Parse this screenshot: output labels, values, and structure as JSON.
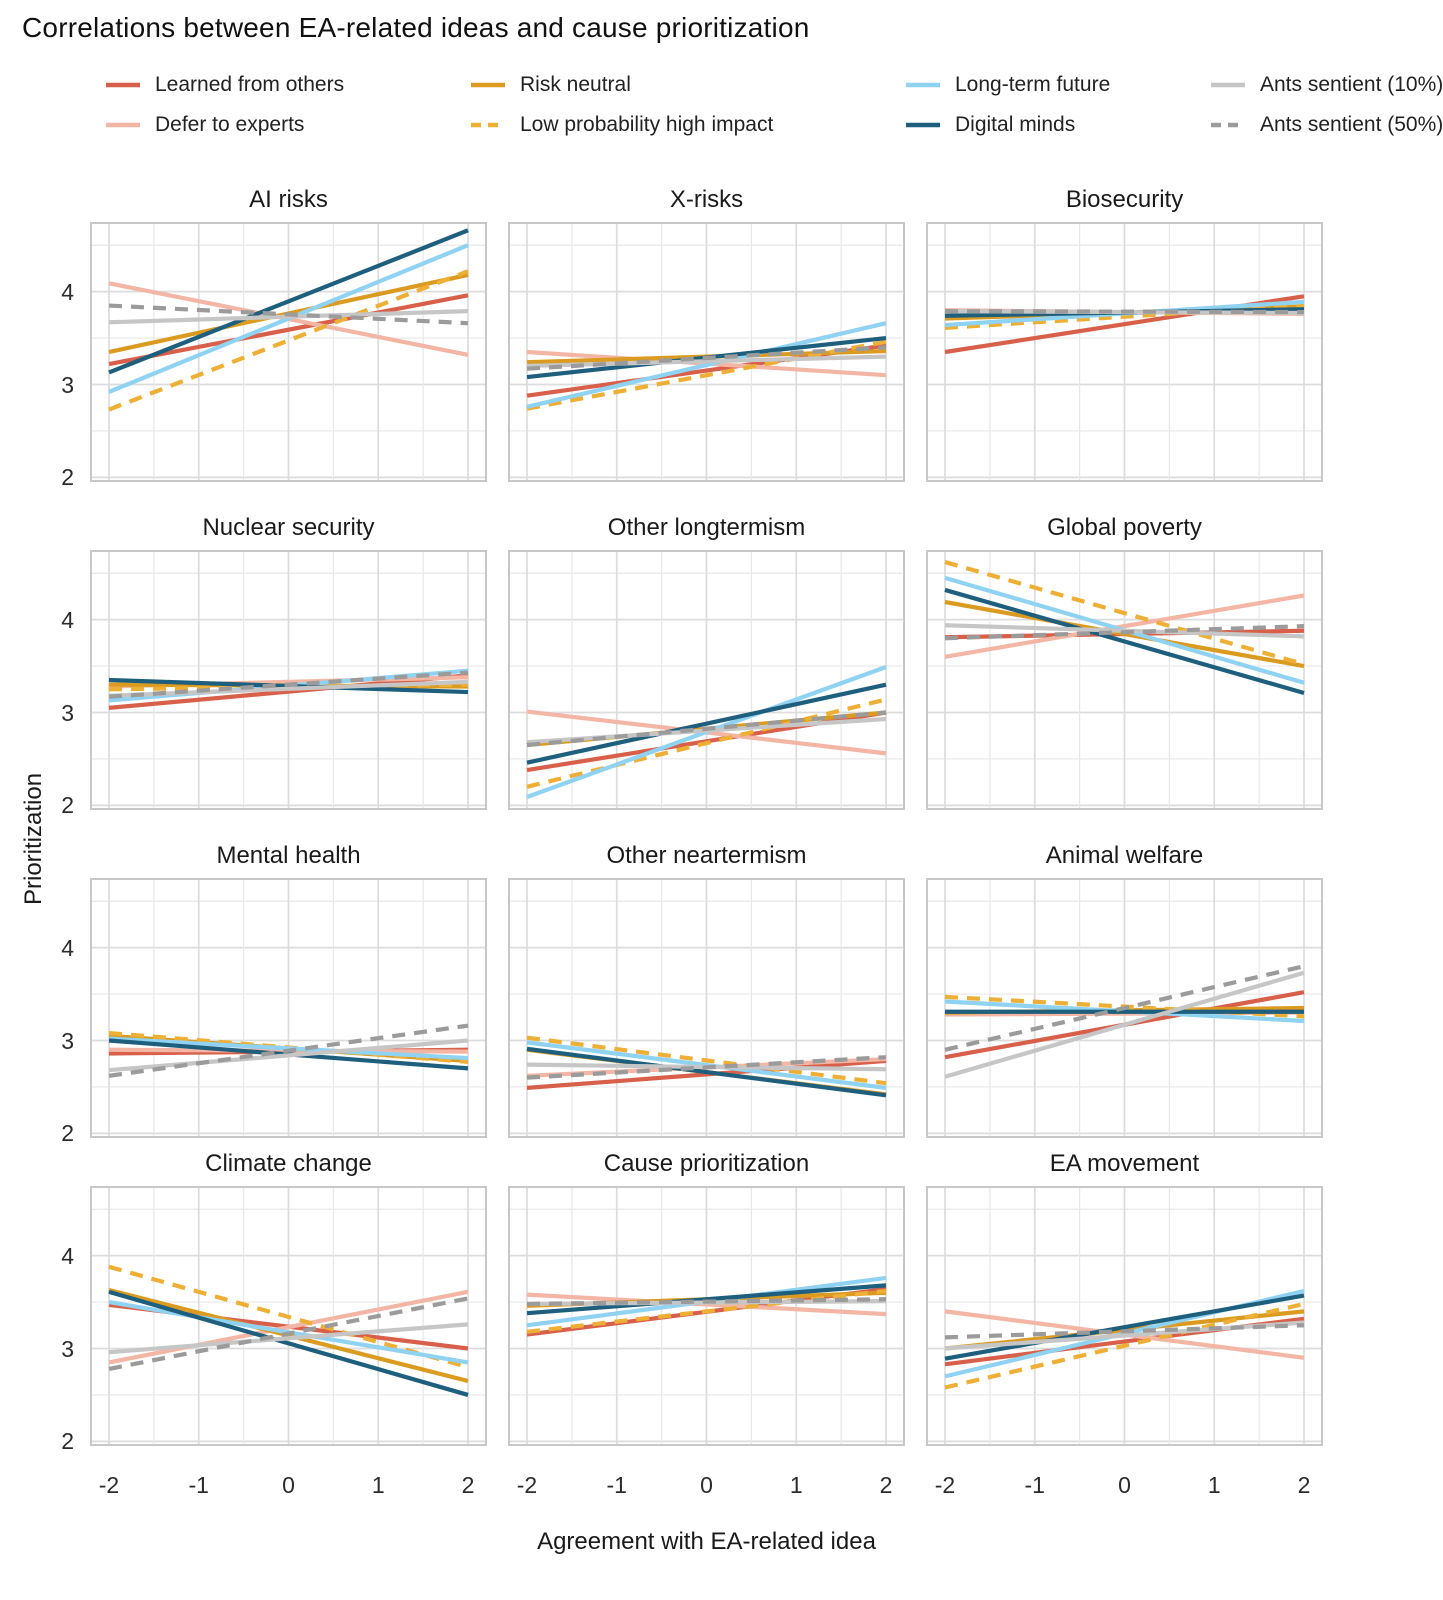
{
  "page": {
    "title": "Correlations between EA-related ideas and cause prioritization"
  },
  "chart_data": {
    "type": "line",
    "title": "Correlations between EA-related ideas and cause prioritization",
    "xlabel": "Agreement with EA-related idea",
    "ylabel": "Prioritization",
    "x_domain": [
      -2,
      2
    ],
    "x_ticks": [
      "-2",
      "-1",
      "0",
      "1",
      "2"
    ],
    "y_ticks": [
      {
        "label": "4",
        "value": 4
      },
      {
        "label": "3",
        "value": 3
      },
      {
        "label": "2",
        "value": 2
      }
    ],
    "ylim": [
      1.95,
      4.75
    ],
    "grid_step": 0.5,
    "legend_position": "top",
    "grid": true,
    "series": [
      {
        "key": "learned",
        "label": "Learned from others",
        "color": "#D8604B",
        "dashed": false
      },
      {
        "key": "defer",
        "label": "Defer to experts",
        "color": "#F3B6A5",
        "dashed": false
      },
      {
        "key": "risk",
        "label": "Risk neutral",
        "color": "#DB9B20",
        "dashed": false
      },
      {
        "key": "lowprob",
        "label": "Low probability high impact",
        "color": "#EDAF35",
        "dashed": true
      },
      {
        "key": "ltf",
        "label": "Long-term future",
        "color": "#8FD2F2",
        "dashed": false
      },
      {
        "key": "digital",
        "label": "Digital minds",
        "color": "#1F5F7E",
        "dashed": false
      },
      {
        "key": "ants10",
        "label": "Ants sentient (10%)",
        "color": "#C6C6C6",
        "dashed": false
      },
      {
        "key": "ants50",
        "label": "Ants sentient (50%)",
        "color": "#9B9B9B",
        "dashed": true
      }
    ],
    "panels": [
      {
        "title": "AI risks",
        "lines": {
          "learned": [
            3.22,
            3.96
          ],
          "defer": [
            4.09,
            3.32
          ],
          "risk": [
            3.35,
            4.18
          ],
          "lowprob": [
            2.73,
            4.22
          ],
          "ltf": [
            2.92,
            4.5
          ],
          "digital": [
            3.13,
            4.66
          ],
          "ants10": [
            3.67,
            3.79
          ],
          "ants50": [
            3.85,
            3.66
          ]
        }
      },
      {
        "title": "X-risks",
        "lines": {
          "learned": [
            2.88,
            3.42
          ],
          "defer": [
            3.35,
            3.1
          ],
          "risk": [
            3.24,
            3.36
          ],
          "lowprob": [
            2.74,
            3.46
          ],
          "ltf": [
            2.76,
            3.66
          ],
          "digital": [
            3.08,
            3.5
          ],
          "ants10": [
            3.2,
            3.3
          ],
          "ants50": [
            3.17,
            3.4
          ]
        }
      },
      {
        "title": "Biosecurity",
        "lines": {
          "learned": [
            3.35,
            3.95
          ],
          "defer": [
            3.8,
            3.76
          ],
          "risk": [
            3.71,
            3.84
          ],
          "lowprob": [
            3.61,
            3.85
          ],
          "ltf": [
            3.64,
            3.89
          ],
          "digital": [
            3.74,
            3.81
          ],
          "ants10": [
            3.79,
            3.77
          ],
          "ants50": [
            3.79,
            3.78
          ]
        }
      },
      {
        "title": "Nuclear security",
        "lines": {
          "learned": [
            3.05,
            3.4
          ],
          "defer": [
            3.28,
            3.38
          ],
          "risk": [
            3.3,
            3.28
          ],
          "lowprob": [
            3.25,
            3.3
          ],
          "ltf": [
            3.13,
            3.45
          ],
          "digital": [
            3.35,
            3.22
          ],
          "ants10": [
            3.18,
            3.33
          ],
          "ants50": [
            3.17,
            3.43
          ]
        }
      },
      {
        "title": "Other longtermism",
        "lines": {
          "learned": [
            2.38,
            3.0
          ],
          "defer": [
            3.01,
            2.56
          ],
          "risk": [
            2.65,
            3.0
          ],
          "lowprob": [
            2.2,
            3.14
          ],
          "ltf": [
            2.09,
            3.49
          ],
          "digital": [
            2.46,
            3.3
          ],
          "ants10": [
            2.68,
            2.93
          ],
          "ants50": [
            2.65,
            3.0
          ]
        }
      },
      {
        "title": "Global poverty",
        "lines": {
          "learned": [
            3.81,
            3.88
          ],
          "defer": [
            3.6,
            4.26
          ],
          "risk": [
            4.19,
            3.5
          ],
          "lowprob": [
            4.62,
            3.52
          ],
          "ltf": [
            4.45,
            3.32
          ],
          "digital": [
            4.32,
            3.21
          ],
          "ants10": [
            3.94,
            3.82
          ],
          "ants50": [
            3.8,
            3.93
          ]
        }
      },
      {
        "title": "Mental health",
        "lines": {
          "learned": [
            2.86,
            2.9
          ],
          "defer": [
            2.9,
            2.88
          ],
          "risk": [
            3.05,
            2.78
          ],
          "lowprob": [
            3.08,
            2.77
          ],
          "ltf": [
            3.02,
            2.81
          ],
          "digital": [
            3.0,
            2.7
          ],
          "ants10": [
            2.68,
            3.0
          ],
          "ants50": [
            2.62,
            3.16
          ]
        }
      },
      {
        "title": "Other neartermism",
        "lines": {
          "learned": [
            2.49,
            2.78
          ],
          "defer": [
            2.62,
            2.8
          ],
          "risk": [
            2.9,
            2.42
          ],
          "lowprob": [
            3.03,
            2.54
          ],
          "ltf": [
            2.98,
            2.49
          ],
          "digital": [
            2.91,
            2.41
          ],
          "ants10": [
            2.74,
            2.69
          ],
          "ants50": [
            2.6,
            2.82
          ]
        }
      },
      {
        "title": "Animal welfare",
        "lines": {
          "learned": [
            2.82,
            3.52
          ],
          "defer": [
            3.28,
            3.3
          ],
          "risk": [
            3.3,
            3.35
          ],
          "lowprob": [
            3.47,
            3.26
          ],
          "ltf": [
            3.42,
            3.21
          ],
          "digital": [
            3.31,
            3.31
          ],
          "ants10": [
            2.61,
            3.73
          ],
          "ants50": [
            2.9,
            3.8
          ]
        }
      },
      {
        "title": "Climate change",
        "lines": {
          "learned": [
            3.47,
            3.0
          ],
          "defer": [
            2.85,
            3.61
          ],
          "risk": [
            3.63,
            2.65
          ],
          "lowprob": [
            3.88,
            2.8
          ],
          "ltf": [
            3.5,
            2.85
          ],
          "digital": [
            3.61,
            2.5
          ],
          "ants10": [
            2.96,
            3.26
          ],
          "ants50": [
            2.78,
            3.54
          ]
        }
      },
      {
        "title": "Cause prioritization",
        "lines": {
          "learned": [
            3.15,
            3.64
          ],
          "defer": [
            3.58,
            3.37
          ],
          "risk": [
            3.46,
            3.6
          ],
          "lowprob": [
            3.18,
            3.62
          ],
          "ltf": [
            3.25,
            3.76
          ],
          "digital": [
            3.38,
            3.68
          ],
          "ants10": [
            3.48,
            3.51
          ],
          "ants50": [
            3.48,
            3.53
          ]
        }
      },
      {
        "title": "EA movement",
        "lines": {
          "learned": [
            2.83,
            3.32
          ],
          "defer": [
            3.4,
            2.9
          ],
          "risk": [
            3.0,
            3.4
          ],
          "lowprob": [
            2.58,
            3.48
          ],
          "ltf": [
            2.7,
            3.62
          ],
          "digital": [
            2.89,
            3.57
          ],
          "ants10": [
            3.0,
            3.28
          ],
          "ants50": [
            3.12,
            3.25
          ]
        }
      }
    ],
    "style": {
      "grid_minor_color": "#E8E8E8",
      "grid_major_color": "#DCDCDC",
      "panel_border_color": "#C8C8C8",
      "background": "#FFFFFF"
    }
  }
}
